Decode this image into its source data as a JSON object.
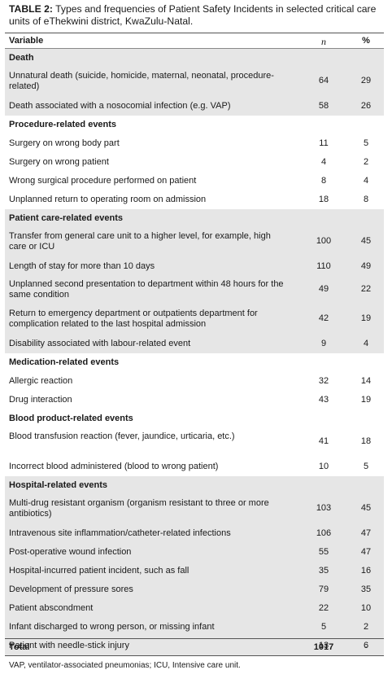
{
  "caption": {
    "label": "TABLE 2:",
    "text": " Types and frequencies of Patient Safety Incidents in selected critical care units of eThekwini district, KwaZulu-Natal."
  },
  "header": {
    "variable": "Variable",
    "n": "n",
    "pct": "%"
  },
  "rows": [
    {
      "type": "section",
      "variable": "Death",
      "top": 0,
      "h": 22,
      "shade": true
    },
    {
      "type": "item",
      "variable": "Unnatural death (suicide, homicide, maternal, neonatal, procedure-related)",
      "n": "64",
      "pct": "29",
      "shade": true
    },
    {
      "type": "item",
      "variable": "Death associated with a nosocomial infection (e.g. VAP)",
      "n": "58",
      "pct": "26",
      "shade": true
    },
    {
      "type": "section",
      "variable": "Procedure-related events",
      "shade": false
    },
    {
      "type": "item",
      "variable": "Surgery on wrong body part",
      "n": "11",
      "pct": "5",
      "shade": false
    },
    {
      "type": "item",
      "variable": "Surgery on wrong patient",
      "n": "4",
      "pct": "2",
      "shade": false
    },
    {
      "type": "item",
      "variable": "Wrong surgical procedure performed on patient",
      "n": "8",
      "pct": "4",
      "shade": false
    },
    {
      "type": "item",
      "variable": "Unplanned return to operating room on admission",
      "n": "18",
      "pct": "8",
      "shade": false
    },
    {
      "type": "section",
      "variable": "Patient care-related events",
      "shade": true
    },
    {
      "type": "item",
      "variable": "Transfer from general care unit to a higher level, for example, high care or ICU",
      "n": "100",
      "pct": "45",
      "shade": true
    },
    {
      "type": "item",
      "variable": "Length of stay for more than 10 days",
      "n": "110",
      "pct": "49",
      "shade": true
    },
    {
      "type": "item",
      "variable": "Unplanned second presentation to department within 48 hours for the same condition",
      "n": "49",
      "pct": "22",
      "shade": true
    },
    {
      "type": "item",
      "variable": "Return to emergency department or outpatients department for complication related to the last hospital admission",
      "n": "42",
      "pct": "19",
      "shade": true
    },
    {
      "type": "item",
      "variable": "Disability associated with labour-related event",
      "n": "9",
      "pct": "4",
      "shade": true
    },
    {
      "type": "section",
      "variable": "Medication-related events",
      "shade": false
    },
    {
      "type": "item",
      "variable": "Allergic reaction",
      "n": "32",
      "pct": "14",
      "shade": false
    },
    {
      "type": "item",
      "variable": "Drug interaction",
      "n": "43",
      "pct": "19",
      "shade": false
    },
    {
      "type": "section",
      "variable": "Blood product-related events",
      "shade": false
    },
    {
      "type": "item",
      "variable": "Blood transfusion reaction (fever, jaundice, urticaria, etc.)",
      "n": "41",
      "pct": "18",
      "shade": false
    },
    {
      "type": "item",
      "variable": "Incorrect blood administered (blood to wrong patient)",
      "n": "10",
      "pct": "5",
      "shade": false
    },
    {
      "type": "section",
      "variable": "Hospital-related events",
      "shade": true
    },
    {
      "type": "item",
      "variable": "Multi-drug resistant organism (organism resistant to three or more antibiotics)",
      "n": "103",
      "pct": "45",
      "shade": true
    },
    {
      "type": "item",
      "variable": "Intravenous site inflammation/catheter-related infections",
      "n": "106",
      "pct": "47",
      "shade": true
    },
    {
      "type": "item",
      "variable": "Post-operative wound infection",
      "n": "55",
      "pct": "47",
      "shade": true
    },
    {
      "type": "item",
      "variable": "Hospital-incurred patient incident, such as fall",
      "n": "35",
      "pct": "16",
      "shade": true
    },
    {
      "type": "item",
      "variable": "Development of pressure sores",
      "n": "79",
      "pct": "35",
      "shade": true
    },
    {
      "type": "item",
      "variable": "Patient abscondment",
      "n": "22",
      "pct": "10",
      "shade": true
    },
    {
      "type": "item",
      "variable": "Infant discharged to wrong person, or missing infant",
      "n": "5",
      "pct": "2",
      "shade": true
    },
    {
      "type": "item",
      "variable": "Patient with needle-stick injury",
      "n": "13",
      "pct": "6",
      "shade": true
    }
  ],
  "total": {
    "variable": "Total",
    "n": "1017",
    "pct": "-"
  },
  "footnote": "VAP, ventilator-associated pneumonias; ICU, Intensive care unit."
}
